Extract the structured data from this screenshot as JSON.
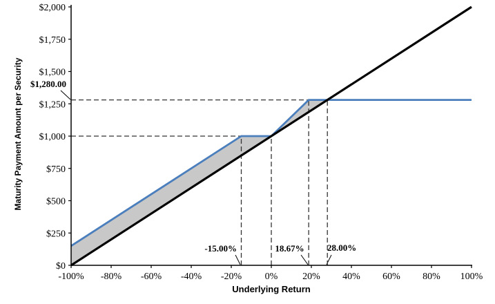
{
  "chart_data": {
    "type": "line",
    "title": "",
    "xlabel": "Underlying Return",
    "ylabel": "Maturity Payment Amount per Security",
    "xlim": [
      -100,
      100
    ],
    "ylim": [
      0,
      2000
    ],
    "grid": false,
    "legend": "none",
    "x_ticks": [
      {
        "value": -100,
        "label": "-100%"
      },
      {
        "value": -80,
        "label": "-80%"
      },
      {
        "value": -60,
        "label": "-60%"
      },
      {
        "value": -40,
        "label": "-40%"
      },
      {
        "value": -20,
        "label": "-20%"
      },
      {
        "value": 0,
        "label": "0%"
      },
      {
        "value": 20,
        "label": "20%"
      },
      {
        "value": 40,
        "label": "40%"
      },
      {
        "value": 60,
        "label": "60%"
      },
      {
        "value": 80,
        "label": "80%"
      },
      {
        "value": 100,
        "label": "100%"
      }
    ],
    "y_ticks": [
      {
        "value": 0,
        "label": "$0"
      },
      {
        "value": 250,
        "label": "$250"
      },
      {
        "value": 500,
        "label": "$500"
      },
      {
        "value": 750,
        "label": "$750"
      },
      {
        "value": 1000,
        "label": "$1,000"
      },
      {
        "value": 1250,
        "label": "$1,250"
      },
      {
        "value": 1500,
        "label": "$1,500"
      },
      {
        "value": 1750,
        "label": "$1,750"
      },
      {
        "value": 2000,
        "label": "$2,000"
      }
    ],
    "series": [
      {
        "id": "maturity-payment",
        "name": "Maturity Payment Amount per Security",
        "color": "#4a7ebc",
        "width": 2.8,
        "points": [
          [
            -100,
            150
          ],
          [
            -15,
            1000
          ],
          [
            0,
            1000
          ],
          [
            18.67,
            1280
          ],
          [
            100,
            1280
          ]
        ]
      },
      {
        "id": "underlying-return-reference",
        "name": "Underlying Return (1:1)",
        "color": "#000000",
        "width": 3.2,
        "points": [
          [
            -100,
            0
          ],
          [
            100,
            2000
          ]
        ]
      }
    ],
    "shaded_region": {
      "color": "#c8c8c8",
      "points": [
        [
          -100,
          150
        ],
        [
          -15,
          1000
        ],
        [
          0,
          1000
        ],
        [
          18.67,
          1280
        ],
        [
          28,
          1280
        ],
        [
          -100,
          0
        ]
      ]
    },
    "reference_lines": [
      {
        "x1": -100,
        "y1": 1000,
        "x2": -15,
        "y2": 1000
      },
      {
        "x1": -100,
        "y1": 1280,
        "x2": 28,
        "y2": 1280
      },
      {
        "x1": -15,
        "y1": 0,
        "x2": -15,
        "y2": 1000
      },
      {
        "x1": 0,
        "y1": 0,
        "x2": 0,
        "y2": 1000
      },
      {
        "x1": 18.67,
        "y1": 0,
        "x2": 18.67,
        "y2": 1280
      },
      {
        "x1": 28,
        "y1": 0,
        "x2": 28,
        "y2": 1280
      }
    ],
    "dash_color": "#333333"
  },
  "annotations": {
    "max_payment": "$1,280.00",
    "buffer_level": "-15.00%",
    "cap_return": "18.67%",
    "breakeven_cross": "28.00%"
  }
}
